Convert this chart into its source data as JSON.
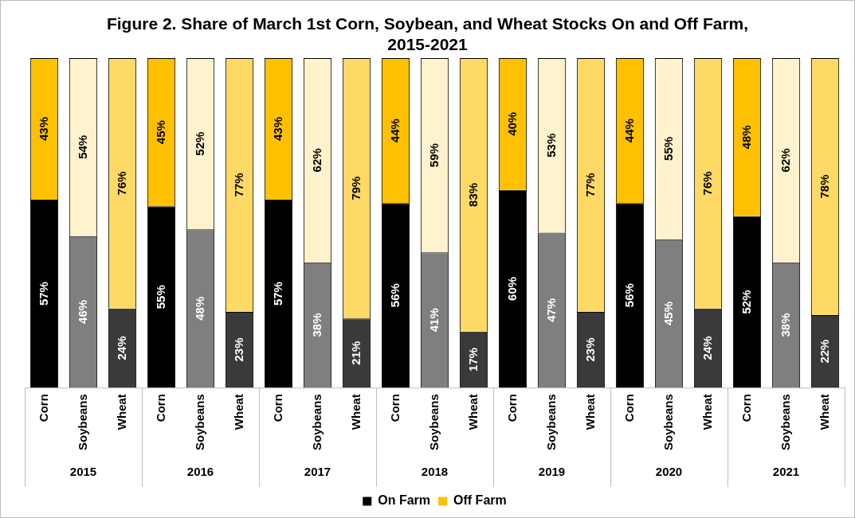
{
  "chart_data": {
    "type": "bar",
    "title": "Figure 2. Share of March 1st Corn, Soybean, and Wheat Stocks On and Off Farm, 2015-2021",
    "categories": [
      "Corn",
      "Soybeans",
      "Wheat",
      "Corn",
      "Soybeans",
      "Wheat",
      "Corn",
      "Soybeans",
      "Wheat",
      "Corn",
      "Soybeans",
      "Wheat",
      "Corn",
      "Soybeans",
      "Wheat",
      "Corn",
      "Soybeans",
      "Wheat",
      "Corn",
      "Soybeans",
      "Wheat"
    ],
    "annotations": [
      "2015",
      "2016",
      "2017",
      "2018",
      "2019",
      "2020",
      "2021"
    ],
    "stacked": true,
    "legend": "bottom",
    "grid": false,
    "series": [
      {
        "name": "On Farm",
        "color": "#000000",
        "colors": [
          "#000000",
          "#7f7f7f",
          "#3a3a3a",
          "#000000",
          "#7f7f7f",
          "#3a3a3a",
          "#000000",
          "#7f7f7f",
          "#3a3a3a",
          "#000000",
          "#7f7f7f",
          "#3a3a3a",
          "#000000",
          "#7f7f7f",
          "#3a3a3a",
          "#000000",
          "#7f7f7f",
          "#3a3a3a",
          "#000000",
          "#7f7f7f",
          "#3a3a3a"
        ],
        "values": [
          57,
          46,
          24,
          55,
          48,
          23,
          57,
          38,
          21,
          56,
          41,
          17,
          60,
          47,
          23,
          56,
          45,
          24,
          52,
          38,
          22
        ],
        "value_labels": [
          "57%",
          "46%",
          "24%",
          "55%",
          "48%",
          "23%",
          "57%",
          "38%",
          "21%",
          "56%",
          "41%",
          "17%",
          "60%",
          "47%",
          "23%",
          "56%",
          "45%",
          "24%",
          "52%",
          "38%",
          "22%"
        ]
      },
      {
        "name": "Off Farm",
        "color": "#ffc000",
        "colors": [
          "#ffc000",
          "#fff2cc",
          "#ffd966",
          "#ffc000",
          "#fff2cc",
          "#ffd966",
          "#ffc000",
          "#fff2cc",
          "#ffd966",
          "#ffc000",
          "#fff2cc",
          "#ffd966",
          "#ffc000",
          "#fff2cc",
          "#ffd966",
          "#ffc000",
          "#fff2cc",
          "#ffd966",
          "#ffc000",
          "#fff2cc",
          "#ffd966"
        ],
        "values": [
          43,
          54,
          76,
          45,
          52,
          77,
          43,
          62,
          79,
          44,
          59,
          83,
          40,
          53,
          77,
          44,
          55,
          76,
          48,
          62,
          78
        ],
        "value_labels": [
          "43%",
          "54%",
          "76%",
          "45%",
          "52%",
          "77%",
          "43%",
          "62%",
          "79%",
          "44%",
          "59%",
          "83%",
          "40%",
          "53%",
          "77%",
          "44%",
          "55%",
          "76%",
          "48%",
          "62%",
          "78%"
        ]
      }
    ]
  }
}
